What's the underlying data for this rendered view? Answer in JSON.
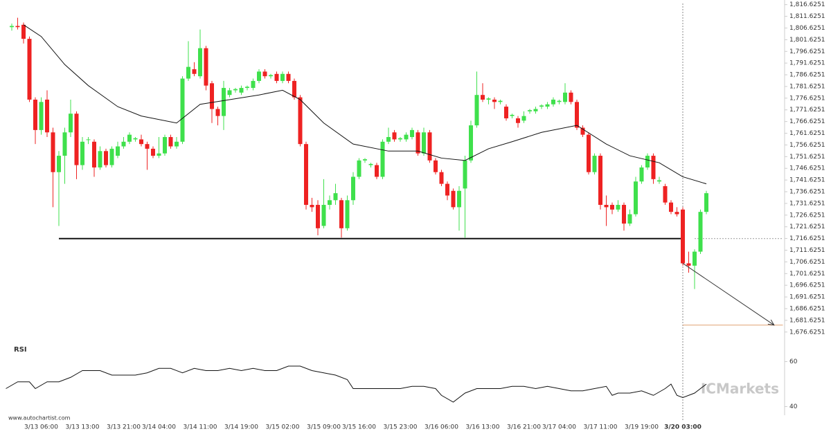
{
  "chart_data": {
    "type": "candlestick",
    "categories": [
      null,
      null,
      null,
      null,
      null,
      "3/13 06:00",
      null,
      null,
      null,
      null,
      null,
      null,
      "3/13 13:00",
      null,
      null,
      null,
      null,
      null,
      null,
      "3/13 21:00",
      null,
      null,
      null,
      null,
      null,
      "3/14 04:00",
      null,
      null,
      null,
      null,
      null,
      null,
      "3/14 11:00",
      null,
      null,
      null,
      null,
      null,
      null,
      "3/14 19:00",
      null,
      null,
      null,
      null,
      null,
      null,
      "3/15 02:00",
      null,
      null,
      null,
      null,
      null,
      null,
      "3/15 09:00",
      null,
      null,
      null,
      null,
      null,
      "3/15 16:00",
      null,
      null,
      null,
      null,
      null,
      null,
      "3/15 23:00",
      null,
      null,
      null,
      null,
      null,
      null,
      "3/16 06:00",
      null,
      null,
      null,
      null,
      null,
      null,
      "3/16 13:00",
      null,
      null,
      null,
      null,
      null,
      null,
      "3/16 21:00",
      null,
      null,
      null,
      null,
      null,
      "3/17 04:00",
      null,
      null,
      null,
      null,
      null,
      null,
      "3/17 11:00",
      null,
      null,
      null,
      null,
      null,
      null,
      "3/19 19:00",
      null,
      null,
      null,
      null,
      null,
      null,
      "3/20 03:00",
      null,
      null,
      null,
      null
    ],
    "open": [
      1807,
      1807.5,
      1808,
      1802,
      1776,
      1763,
      1776,
      1762,
      1745,
      1752,
      1762,
      1770,
      1748,
      1759,
      1758,
      1747,
      1754,
      1748,
      1752,
      1756,
      1758,
      1759,
      1759,
      1757,
      1755,
      1752,
      1753,
      1760,
      1756,
      1758,
      1785,
      1789,
      1786,
      1798,
      1783,
      1772,
      1769,
      1778,
      1780,
      1779,
      1781,
      1781,
      1784,
      1788,
      1786,
      1787,
      1784,
      1787,
      1784,
      1777,
      1757,
      1731,
      1731,
      1722,
      1731,
      1733,
      1733,
      1721,
      1733,
      1743,
      1750,
      1748,
      1748,
      1743,
      1758,
      1762,
      1759,
      1759,
      1760,
      1762,
      1753,
      1762,
      1750,
      1745,
      1740,
      1737,
      1730,
      1738,
      1750,
      1765,
      1778,
      1776,
      1776,
      1775,
      1773,
      1769,
      1768,
      1767,
      1771,
      1771,
      1773,
      1773,
      1774,
      1775,
      1775,
      1779,
      1775,
      1764,
      1761,
      1745,
      1752,
      1731,
      1731,
      1729,
      1731,
      1723,
      1727,
      1741,
      1747,
      1752,
      1741,
      1739,
      1732,
      1728,
      1729,
      1706,
      1705,
      1711,
      1728
    ],
    "high": [
      1808.5,
      1811,
      1809,
      1803,
      1777,
      1777,
      1780,
      1764,
      1754,
      1764,
      1776,
      1771,
      1760,
      1760,
      1759,
      1756,
      1755,
      1756,
      1758,
      1760,
      1762,
      1760,
      1761,
      1758,
      1756,
      1760,
      1761,
      1761,
      1760,
      1786,
      1801,
      1792,
      1806,
      1799,
      1784,
      1773,
      1784,
      1781,
      1781,
      1782,
      1782,
      1785,
      1789,
      1789,
      1787,
      1788,
      1788,
      1788,
      1785,
      1778,
      1758,
      1734,
      1733,
      1742,
      1735,
      1740,
      1734,
      1735,
      1745,
      1751,
      1751,
      1749,
      1749,
      1759,
      1764,
      1763,
      1760,
      1762,
      1764,
      1763,
      1764,
      1763,
      1751,
      1746,
      1741,
      1738,
      1739,
      1752,
      1767,
      1788,
      1783,
      1777,
      1777,
      1776,
      1774,
      1770,
      1769,
      1771,
      1772,
      1773,
      1774,
      1775,
      1777,
      1776,
      1783,
      1780,
      1776,
      1765,
      1762,
      1753,
      1753,
      1735,
      1732,
      1733,
      1732,
      1729,
      1743,
      1748,
      1753,
      1753,
      1743,
      1740,
      1733,
      1730,
      1730,
      1711,
      1712,
      1729,
      1737
    ],
    "low": [
      1805.5,
      1806,
      1800,
      1775,
      1757,
      1761,
      1760,
      1730,
      1722,
      1740,
      1760,
      1742,
      1746,
      1757,
      1743,
      1746,
      1747,
      1747,
      1751,
      1755,
      1757,
      1758,
      1756,
      1746,
      1751,
      1751,
      1752,
      1755,
      1755,
      1757,
      1784,
      1786,
      1785,
      1780,
      1766,
      1765,
      1763,
      1777,
      1779,
      1778,
      1780,
      1780,
      1783,
      1785,
      1785,
      1783,
      1783,
      1783,
      1776,
      1756,
      1729,
      1728,
      1718,
      1721,
      1729,
      1731,
      1717,
      1720,
      1731,
      1742,
      1749,
      1747,
      1742,
      1742,
      1757,
      1758,
      1758,
      1758,
      1759,
      1752,
      1752,
      1749,
      1744,
      1739,
      1733,
      1729,
      1720,
      1717,
      1749,
      1764,
      1775,
      1774,
      1772,
      1774,
      1767,
      1768,
      1764,
      1766,
      1770,
      1770,
      1772,
      1772,
      1773,
      1774,
      1774,
      1774,
      1763,
      1760,
      1744,
      1744,
      1729,
      1722,
      1727,
      1728,
      1720,
      1722,
      1726,
      1740,
      1746,
      1740,
      1740,
      1731,
      1727,
      1726,
      1705,
      1702,
      1695,
      1710,
      1727
    ],
    "close": [
      1807.5,
      1807,
      1802,
      1776,
      1763,
      1775,
      1762,
      1745,
      1752,
      1762,
      1770,
      1748,
      1758,
      1759,
      1747,
      1754,
      1748,
      1755,
      1756,
      1758,
      1761,
      1759.5,
      1757,
      1755,
      1752,
      1753,
      1760,
      1756,
      1758,
      1785,
      1790,
      1787,
      1798,
      1782,
      1772,
      1769,
      1781,
      1780,
      1780.5,
      1781,
      1781.5,
      1784,
      1788,
      1786,
      1786.5,
      1784,
      1787,
      1784,
      1777,
      1757,
      1731,
      1730,
      1721,
      1731,
      1733,
      1736,
      1721,
      1733,
      1743,
      1750,
      1750.5,
      1748.5,
      1743,
      1758,
      1760,
      1759,
      1759.5,
      1761,
      1763,
      1753,
      1762,
      1750,
      1745,
      1740,
      1735,
      1730,
      1737,
      1750,
      1765,
      1778,
      1776,
      1776.5,
      1775,
      1775.5,
      1768,
      1769.5,
      1766,
      1769,
      1771.5,
      1772,
      1773.5,
      1774,
      1776,
      1775.5,
      1779,
      1775,
      1764,
      1761,
      1745,
      1752,
      1731,
      1730,
      1729,
      1731,
      1723,
      1727,
      1741,
      1747,
      1752,
      1742,
      1741.5,
      1732,
      1728,
      1727,
      1706,
      1705,
      1711,
      1728,
      1736
    ],
    "up_color": "#3fe04c",
    "down_color": "#ee2222",
    "xlim": [
      -1,
      131
    ],
    "ylim": [
      1673.6,
      1818.6
    ],
    "yticks": [
      {
        "value": 1816.6251,
        "label": "1,816.6251"
      },
      {
        "value": 1811.6251,
        "label": "1,811.6251"
      },
      {
        "value": 1806.6251,
        "label": "1,806.6251"
      },
      {
        "value": 1801.6251,
        "label": "1,801.6251"
      },
      {
        "value": 1796.6251,
        "label": "1,796.6251"
      },
      {
        "value": 1791.6251,
        "label": "1,791.6251"
      },
      {
        "value": 1786.6251,
        "label": "1,786.6251"
      },
      {
        "value": 1781.6251,
        "label": "1,781.6251"
      },
      {
        "value": 1776.6251,
        "label": "1,776.6251"
      },
      {
        "value": 1771.6251,
        "label": "1,771.6251"
      },
      {
        "value": 1766.6251,
        "label": "1,766.6251"
      },
      {
        "value": 1761.6251,
        "label": "1,761.6251"
      },
      {
        "value": 1756.6251,
        "label": "1,756.6251"
      },
      {
        "value": 1751.6251,
        "label": "1,751.6251"
      },
      {
        "value": 1746.6251,
        "label": "1,746.6251"
      },
      {
        "value": 1741.6251,
        "label": "1,741.6251"
      },
      {
        "value": 1736.6251,
        "label": "1,736.6251"
      },
      {
        "value": 1731.6251,
        "label": "1,731.6251"
      },
      {
        "value": 1726.6251,
        "label": "1,726.6251"
      },
      {
        "value": 1721.6251,
        "label": "1,721.6251"
      },
      {
        "value": 1716.6251,
        "label": "1,716.6251"
      },
      {
        "value": 1711.6251,
        "label": "1,711.6251"
      },
      {
        "value": 1706.6251,
        "label": "1,706.6251"
      },
      {
        "value": 1701.6251,
        "label": "1,701.6251"
      },
      {
        "value": 1696.6251,
        "label": "1,696.6251"
      },
      {
        "value": 1691.6251,
        "label": "1,691.6251"
      },
      {
        "value": 1686.6251,
        "label": "1,686.6251"
      },
      {
        "value": 1681.6251,
        "label": "1,681.6251"
      },
      {
        "value": 1676.6251,
        "label": "1,676.6251"
      }
    ],
    "moving_average": {
      "color": "#111111",
      "x": [
        2,
        5,
        9,
        13,
        18,
        22,
        28,
        32,
        37,
        42,
        46,
        49,
        53,
        58,
        64,
        69,
        73,
        77,
        81,
        85,
        90,
        96,
        101,
        105,
        110,
        114,
        118
      ],
      "values": [
        1808,
        1803,
        1791,
        1782,
        1773,
        1769,
        1766,
        1774,
        1776,
        1778,
        1780,
        1776,
        1766,
        1757,
        1754,
        1754,
        1751,
        1750,
        1755,
        1758,
        1762,
        1765,
        1757,
        1752,
        1749,
        1743,
        1740
      ]
    },
    "support": {
      "value": 1716.6,
      "x": [
        8,
        114
      ],
      "color": "#111111"
    },
    "last_price": {
      "value": 1716.6,
      "x": [
        116,
        131
      ],
      "color": "#999999"
    },
    "marker_x": 114,
    "forecast": {
      "x": [
        114,
        129.5
      ],
      "values": [
        1706,
        1679.6
      ],
      "color": "#333333"
    },
    "target": {
      "value": 1679.6,
      "x": [
        114,
        131
      ],
      "color": "#e0a070"
    },
    "rsi": {
      "title": "RSI",
      "color": "#111111",
      "ylim": [
        30,
        70
      ],
      "yticks": [
        60,
        40
      ],
      "x": [
        -1,
        1,
        3,
        4,
        6,
        8,
        10,
        12,
        15,
        17,
        21,
        23,
        25,
        27,
        29,
        31,
        33,
        35,
        37,
        39,
        41,
        43,
        45,
        47,
        49,
        51,
        53,
        55,
        57,
        58,
        60,
        62,
        64,
        66,
        68,
        70,
        72,
        73,
        75,
        77,
        79,
        81,
        83,
        85,
        87,
        89,
        91,
        93,
        95,
        97,
        99,
        101,
        102,
        103,
        105,
        107,
        109,
        111,
        112,
        113,
        114,
        116,
        118
      ],
      "values": [
        48,
        51,
        51,
        48,
        51,
        51,
        53,
        56,
        56,
        54,
        54,
        55,
        57,
        57,
        55,
        57,
        56,
        56,
        57,
        56,
        57,
        56,
        56,
        58,
        58,
        56,
        55,
        54,
        52,
        48,
        48,
        48,
        48,
        48,
        49,
        49,
        48,
        45,
        42,
        46,
        48,
        48,
        48,
        49,
        49,
        48,
        49,
        48,
        47,
        47,
        48,
        49,
        45,
        46,
        46,
        47,
        45,
        48,
        50,
        45,
        44,
        46,
        50
      ]
    },
    "brand": "ICMarkets",
    "source": "www.autochartist.com"
  }
}
